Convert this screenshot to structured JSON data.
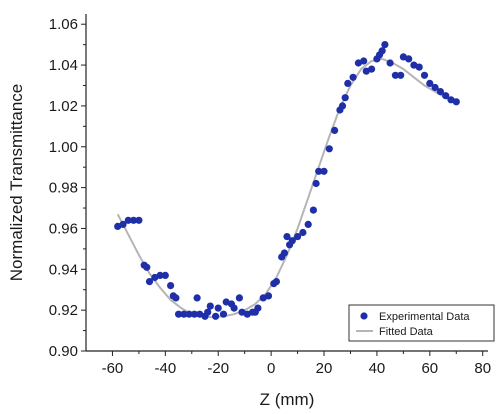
{
  "chart_data": {
    "type": "scatter",
    "xlabel": "Z (mm)",
    "ylabel": "Normalized Transmittance",
    "xlim": [
      -70,
      82
    ],
    "ylim": [
      0.9,
      1.065
    ],
    "xticks": [
      -60,
      -40,
      -20,
      0,
      20,
      40,
      60,
      80
    ],
    "yticks": [
      0.9,
      0.92,
      0.94,
      0.96,
      0.98,
      1.0,
      1.02,
      1.04,
      1.06
    ],
    "grid": false,
    "legend_position": "bottom-right",
    "series": [
      {
        "name": "Experimental Data",
        "kind": "markers",
        "color": "#1f2fa8",
        "points": [
          [
            -58,
            0.961
          ],
          [
            -56,
            0.962
          ],
          [
            -54,
            0.964
          ],
          [
            -52,
            0.964
          ],
          [
            -50,
            0.964
          ],
          [
            -48,
            0.942
          ],
          [
            -47,
            0.941
          ],
          [
            -46,
            0.934
          ],
          [
            -44,
            0.936
          ],
          [
            -42,
            0.937
          ],
          [
            -40,
            0.937
          ],
          [
            -38,
            0.932
          ],
          [
            -37,
            0.927
          ],
          [
            -36,
            0.926
          ],
          [
            -35,
            0.918
          ],
          [
            -33,
            0.918
          ],
          [
            -31,
            0.918
          ],
          [
            -29,
            0.918
          ],
          [
            -28,
            0.926
          ],
          [
            -27,
            0.918
          ],
          [
            -25,
            0.917
          ],
          [
            -24,
            0.919
          ],
          [
            -23,
            0.922
          ],
          [
            -21,
            0.917
          ],
          [
            -20,
            0.921
          ],
          [
            -18,
            0.918
          ],
          [
            -17,
            0.924
          ],
          [
            -15,
            0.923
          ],
          [
            -14,
            0.921
          ],
          [
            -12,
            0.926
          ],
          [
            -11,
            0.919
          ],
          [
            -9,
            0.918
          ],
          [
            -7,
            0.919
          ],
          [
            -6,
            0.919
          ],
          [
            -5,
            0.921
          ],
          [
            -3,
            0.926
          ],
          [
            -1,
            0.927
          ],
          [
            1,
            0.933
          ],
          [
            2,
            0.934
          ],
          [
            4,
            0.946
          ],
          [
            5,
            0.948
          ],
          [
            6,
            0.956
          ],
          [
            7,
            0.952
          ],
          [
            8,
            0.954
          ],
          [
            10,
            0.956
          ],
          [
            12,
            0.958
          ],
          [
            14,
            0.962
          ],
          [
            16,
            0.969
          ],
          [
            17,
            0.982
          ],
          [
            18,
            0.988
          ],
          [
            20,
            0.988
          ],
          [
            22,
            0.999
          ],
          [
            24,
            1.008
          ],
          [
            26,
            1.018
          ],
          [
            27,
            1.02
          ],
          [
            28,
            1.024
          ],
          [
            29,
            1.031
          ],
          [
            31,
            1.034
          ],
          [
            33,
            1.041
          ],
          [
            35,
            1.042
          ],
          [
            36,
            1.037
          ],
          [
            38,
            1.038
          ],
          [
            40,
            1.043
          ],
          [
            41,
            1.045
          ],
          [
            42,
            1.047
          ],
          [
            43,
            1.05
          ],
          [
            45,
            1.041
          ],
          [
            47,
            1.035
          ],
          [
            49,
            1.035
          ],
          [
            50,
            1.044
          ],
          [
            52,
            1.043
          ],
          [
            54,
            1.04
          ],
          [
            56,
            1.039
          ],
          [
            58,
            1.035
          ],
          [
            60,
            1.031
          ],
          [
            62,
            1.029
          ],
          [
            64,
            1.027
          ],
          [
            66,
            1.025
          ],
          [
            68,
            1.023
          ],
          [
            70,
            1.022
          ]
        ]
      },
      {
        "name": "Fitted Data",
        "kind": "line",
        "color": "#b5b5b5",
        "points": [
          [
            -58,
            0.967
          ],
          [
            -54,
            0.957
          ],
          [
            -50,
            0.947
          ],
          [
            -46,
            0.938
          ],
          [
            -42,
            0.931
          ],
          [
            -38,
            0.925
          ],
          [
            -34,
            0.921
          ],
          [
            -30,
            0.918
          ],
          [
            -26,
            0.917
          ],
          [
            -22,
            0.9165
          ],
          [
            -18,
            0.917
          ],
          [
            -14,
            0.918
          ],
          [
            -10,
            0.92
          ],
          [
            -6,
            0.923
          ],
          [
            -2,
            0.928
          ],
          [
            2,
            0.936
          ],
          [
            6,
            0.947
          ],
          [
            10,
            0.96
          ],
          [
            14,
            0.975
          ],
          [
            18,
            0.99
          ],
          [
            22,
            1.005
          ],
          [
            26,
            1.019
          ],
          [
            30,
            1.03
          ],
          [
            34,
            1.038
          ],
          [
            38,
            1.042
          ],
          [
            42,
            1.043
          ],
          [
            46,
            1.041
          ],
          [
            50,
            1.038
          ],
          [
            54,
            1.034
          ],
          [
            58,
            1.03
          ],
          [
            62,
            1.027
          ],
          [
            66,
            1.024
          ],
          [
            70,
            1.021
          ]
        ]
      }
    ]
  }
}
